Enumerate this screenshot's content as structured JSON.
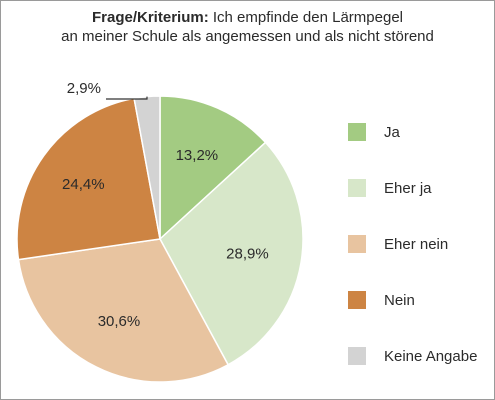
{
  "title": {
    "prefix": "Frage/Kriterium:",
    "line1_rest": " Ich empfinde den Lärmpegel",
    "line2": "an meiner Schule als angemessen und als nicht störend"
  },
  "chart_data": {
    "type": "pie",
    "title": "Frage/Kriterium: Ich empfinde den Lärmpegel an meiner Schule als angemessen und als nicht störend",
    "slices": [
      {
        "label": "Ja",
        "value": 13.2,
        "display": "13,2%",
        "color": "#a3cb82"
      },
      {
        "label": "Eher ja",
        "value": 28.9,
        "display": "28,9%",
        "color": "#d7e7c9"
      },
      {
        "label": "Eher nein",
        "value": 30.6,
        "display": "30,6%",
        "color": "#e8c4a0"
      },
      {
        "label": "Nein",
        "value": 24.4,
        "display": "24,4%",
        "color": "#cd8443"
      },
      {
        "label": "Keine Angabe",
        "value": 2.9,
        "display": "2,9%",
        "color": "#d3d3d3"
      }
    ],
    "legend_position": "right",
    "start_angle": "top",
    "direction": "clockwise"
  }
}
